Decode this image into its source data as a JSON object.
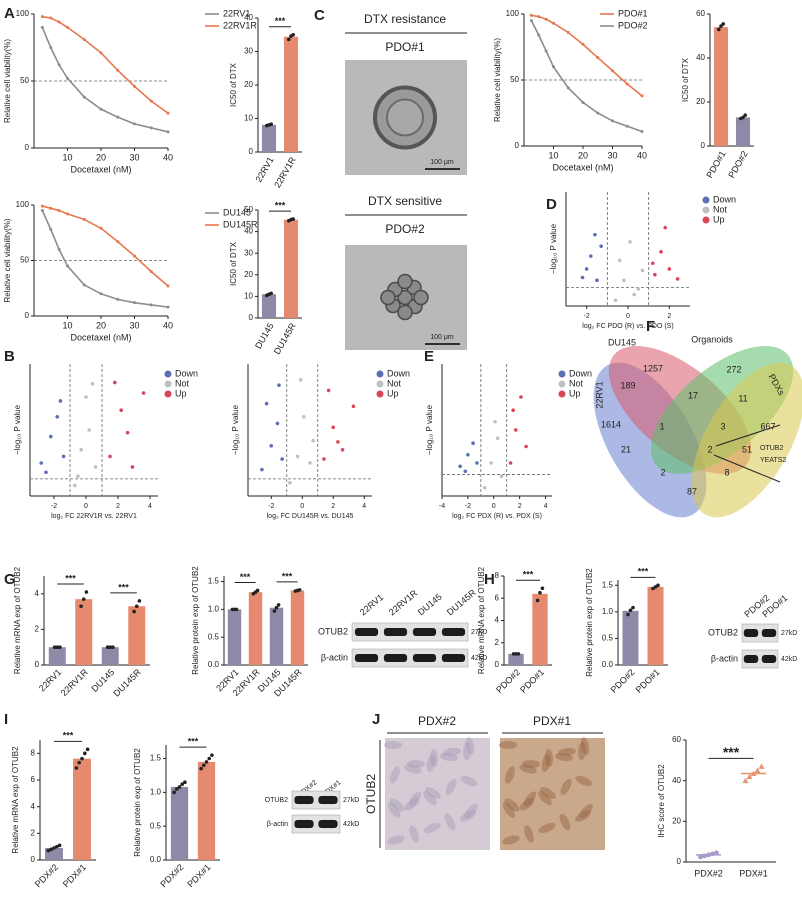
{
  "chart_data": [
    {
      "type": "line",
      "x": [
        2.5,
        5,
        7.5,
        10,
        15,
        20,
        25,
        30,
        35,
        40
      ],
      "xlim": [
        0,
        40
      ],
      "xticks": [
        10,
        20,
        30,
        40
      ],
      "ylim": [
        0,
        100
      ],
      "yticks": [
        0,
        50,
        100
      ],
      "xlabel": "Docetaxel (nM)",
      "ylabel": "Relative cell viability(%)",
      "refline": 50,
      "series": [
        {
          "name": "22RV1",
          "color": "#8c8c8c",
          "values": [
            90,
            75,
            62,
            52,
            38,
            29,
            23,
            18,
            15,
            12
          ]
        },
        {
          "name": "22RV1R",
          "color": "#e8764f",
          "values": [
            98,
            97,
            94,
            90,
            81,
            71,
            58,
            46,
            35,
            26
          ]
        }
      ]
    },
    {
      "type": "bar",
      "categories": [
        "22RV1",
        "22RV1R"
      ],
      "values": [
        8.1,
        34.4
      ],
      "points": [
        [
          7.9,
          8.1,
          8.3
        ],
        [
          33.6,
          34.6,
          35.0
        ]
      ],
      "colors": [
        "#8d89a6",
        "#e58a6e"
      ],
      "ylim": [
        0,
        40
      ],
      "yticks": [
        0,
        10,
        20,
        30,
        40
      ],
      "ylabel": "IC50 of DTX",
      "significance": [
        "***"
      ]
    },
    {
      "type": "line",
      "x": [
        2.5,
        5,
        7.5,
        10,
        15,
        20,
        25,
        30,
        35,
        40
      ],
      "xlim": [
        0,
        40
      ],
      "xticks": [
        10,
        20,
        30,
        40
      ],
      "ylim": [
        0,
        100
      ],
      "yticks": [
        0,
        50,
        100
      ],
      "xlabel": "Docetaxel (nM)",
      "ylabel": "Relative cell viability(%)",
      "refline": 50,
      "series": [
        {
          "name": "DU145",
          "color": "#8c8c8c",
          "values": [
            95,
            78,
            60,
            45,
            28,
            20,
            15,
            12,
            10,
            8
          ]
        },
        {
          "name": "DU145R",
          "color": "#e8764f",
          "values": [
            99,
            97,
            95,
            92,
            87,
            79,
            67,
            54,
            40,
            27
          ]
        }
      ]
    },
    {
      "type": "bar",
      "categories": [
        "DU145",
        "DU145R"
      ],
      "values": [
        11,
        45.5
      ],
      "points": [
        [
          10.5,
          11,
          11.4
        ],
        [
          45,
          45.6,
          45.8
        ]
      ],
      "colors": [
        "#8d89a6",
        "#e58a6e"
      ],
      "ylim": [
        0,
        50
      ],
      "yticks": [
        0,
        10,
        20,
        30,
        40,
        50
      ],
      "ylabel": "IC50 of DTX",
      "significance": [
        "***"
      ]
    },
    {
      "type": "line",
      "x": [
        2.5,
        5,
        7.5,
        10,
        15,
        20,
        25,
        30,
        35,
        40
      ],
      "xlim": [
        0,
        40
      ],
      "xticks": [
        10,
        20,
        30,
        40
      ],
      "ylim": [
        0,
        100
      ],
      "yticks": [
        0,
        50,
        100
      ],
      "xlabel": "Docetaxel (nM)",
      "ylabel": "Relative cell viability(%)",
      "refline": 50,
      "series": [
        {
          "name": "PDO#1",
          "color": "#e8764f",
          "values": [
            99,
            98,
            96,
            93,
            86,
            77,
            67,
            57,
            47,
            38
          ]
        },
        {
          "name": "PDO#2",
          "color": "#8c8c8c",
          "values": [
            95,
            84,
            72,
            60,
            44,
            33,
            25,
            19,
            15,
            11
          ]
        }
      ]
    },
    {
      "type": "bar",
      "categories": [
        "PDO#1",
        "PDO#2"
      ],
      "values": [
        54,
        13
      ],
      "points": [
        [
          53,
          54.5,
          55.5
        ],
        [
          12.5,
          13,
          14
        ]
      ],
      "colors": [
        "#e58a6e",
        "#8d89a6"
      ],
      "ylim": [
        0,
        60
      ],
      "yticks": [
        0,
        20,
        40,
        60
      ],
      "ylabel": "IC50 of DTX"
    },
    {
      "type": "scatter",
      "xlim": [
        -3,
        3
      ],
      "xticks": [
        -2,
        0,
        2
      ],
      "ylim": [
        0,
        8
      ],
      "vlines": [
        -1,
        1
      ],
      "hline": 1.3,
      "xlabel": "log₂ FC PDO (R) vs. PDO (S)",
      "ylabel": "−log₁₀ P value",
      "series": [
        {
          "name": "Down",
          "color": "#5a6fb5",
          "x": [
            -2.2,
            -1.8,
            -1.5,
            -1.3,
            -2.0,
            -1.6
          ],
          "values": [
            2.0,
            3.5,
            1.8,
            4.2,
            2.6,
            5.0
          ]
        },
        {
          "name": "Not",
          "color": "#c0c0c0",
          "x": [
            -0.6,
            -0.2,
            0.3,
            0.7,
            -0.4,
            0.1,
            0.5
          ],
          "values": [
            0.4,
            1.8,
            0.8,
            2.5,
            3.2,
            4.5,
            1.2
          ]
        },
        {
          "name": "Up",
          "color": "#d9465a",
          "x": [
            1.3,
            1.6,
            2.0,
            2.4,
            1.8,
            1.2
          ],
          "values": [
            2.2,
            3.8,
            2.6,
            1.9,
            5.5,
            3.0
          ]
        }
      ]
    },
    {
      "type": "scatter",
      "xlim": [
        -3.5,
        4.5
      ],
      "xticks": [
        -2,
        0,
        2,
        4
      ],
      "ylim": [
        0,
        10
      ],
      "vlines": [
        -1,
        1
      ],
      "hline": 1.3,
      "xlabel": "log₂ FC 22RV1R vs. 22RV1",
      "ylabel": "−log₁₀ P value",
      "series": [
        {
          "name": "Down",
          "color": "#5a6fb5",
          "x": [
            -2.8,
            -2.2,
            -1.8,
            -1.4,
            -2.5,
            -1.6
          ],
          "values": [
            2.5,
            4.5,
            6.0,
            3.0,
            1.8,
            7.2
          ]
        },
        {
          "name": "Not",
          "color": "#c0c0c0",
          "x": [
            -0.7,
            -0.3,
            0.2,
            0.6,
            0.0,
            -0.5,
            0.4
          ],
          "values": [
            0.8,
            3.5,
            5.0,
            2.2,
            7.5,
            1.5,
            8.5
          ]
        },
        {
          "name": "Up",
          "color": "#d9465a",
          "x": [
            1.5,
            2.2,
            2.9,
            3.6,
            1.8,
            2.6
          ],
          "values": [
            3.0,
            6.5,
            2.2,
            7.8,
            8.6,
            4.8
          ]
        }
      ]
    },
    {
      "type": "scatter",
      "xlim": [
        -3.5,
        4.5
      ],
      "xticks": [
        -2,
        0,
        2,
        4
      ],
      "ylim": [
        0,
        10
      ],
      "vlines": [
        -1,
        1
      ],
      "hline": 1.3,
      "xlabel": "log₂ FC DU145R vs. DU145",
      "ylabel": "−log₁₀ P value",
      "series": [
        {
          "name": "Down",
          "color": "#5a6fb5",
          "x": [
            -2.6,
            -2.0,
            -1.6,
            -1.3,
            -2.3,
            -1.5
          ],
          "values": [
            2.0,
            3.8,
            5.5,
            2.8,
            7.0,
            8.4
          ]
        },
        {
          "name": "Not",
          "color": "#c0c0c0",
          "x": [
            -0.8,
            -0.3,
            0.1,
            0.5,
            -0.1,
            0.7
          ],
          "values": [
            1.0,
            3.0,
            6.0,
            2.5,
            8.8,
            4.2
          ]
        },
        {
          "name": "Up",
          "color": "#d9465a",
          "x": [
            1.4,
            2.0,
            2.6,
            3.3,
            1.7,
            2.3
          ],
          "values": [
            2.8,
            5.2,
            3.5,
            6.8,
            8.0,
            4.1
          ]
        }
      ]
    },
    {
      "type": "scatter",
      "xlim": [
        -4,
        4.5
      ],
      "xticks": [
        -4,
        -2,
        0,
        2,
        4
      ],
      "ylim": [
        0,
        8
      ],
      "vlines": [
        -1,
        1
      ],
      "hline": 1.3,
      "xlabel": "log₂ FC PDX (R) vs. PDX (S)",
      "ylabel": "−log₁₀ P value",
      "series": [
        {
          "name": "Down",
          "color": "#5a6fb5",
          "x": [
            -2.6,
            -2.0,
            -1.6,
            -1.3,
            -2.2
          ],
          "values": [
            1.8,
            2.5,
            3.2,
            2.0,
            1.5
          ]
        },
        {
          "name": "Not",
          "color": "#c0c0c0",
          "x": [
            -0.7,
            -0.2,
            0.3,
            0.6,
            0.1
          ],
          "values": [
            0.5,
            2.0,
            3.5,
            1.2,
            4.5
          ]
        },
        {
          "name": "Up",
          "color": "#d9465a",
          "x": [
            1.3,
            1.7,
            2.1,
            1.5,
            2.5
          ],
          "values": [
            2.0,
            4.0,
            6.0,
            5.2,
            3.0
          ]
        }
      ]
    },
    {
      "type": "bar",
      "categories": [
        "22RV1",
        "22RV1R",
        "DU145",
        "DU145R"
      ],
      "values": [
        1,
        3.7,
        1,
        3.3
      ],
      "points": [
        [
          1,
          1,
          1
        ],
        [
          3.3,
          3.7,
          4.1
        ],
        [
          1,
          1,
          1
        ],
        [
          3.0,
          3.3,
          3.6
        ]
      ],
      "colors": [
        "#8d89a6",
        "#e58a6e",
        "#8d89a6",
        "#e58a6e"
      ],
      "ylim": [
        0,
        5
      ],
      "yticks": [
        0,
        2,
        4
      ],
      "ylabel": "Relative mRNA exp of OTUB2",
      "significance": [
        "***",
        "***"
      ]
    },
    {
      "type": "bar",
      "categories": [
        "22RV1",
        "22RV1R",
        "DU145",
        "DU145R"
      ],
      "values": [
        1.0,
        1.31,
        1.03,
        1.34
      ],
      "points": [
        [
          1.0,
          1.0,
          1.0
        ],
        [
          1.28,
          1.31,
          1.34
        ],
        [
          0.97,
          1.03,
          1.08
        ],
        [
          1.33,
          1.34,
          1.35
        ]
      ],
      "colors": [
        "#8d89a6",
        "#e58a6e",
        "#8d89a6",
        "#e58a6e"
      ],
      "ylim": [
        0,
        1.6
      ],
      "yticks": [
        {
          "value": 0,
          "label": "0.0"
        },
        {
          "value": 0.5,
          "label": "0.5"
        },
        {
          "value": 1,
          "label": "1.0"
        },
        {
          "value": 1.5,
          "label": "1.5"
        }
      ],
      "ylabel": "Relative protein exp of OTUB2",
      "significance": [
        "***",
        "***"
      ]
    },
    {
      "type": "bar",
      "categories": [
        "PDO#2",
        "PDO#1"
      ],
      "values": [
        1,
        6.4
      ],
      "points": [
        [
          1,
          1,
          1
        ],
        [
          5.8,
          6.5,
          6.9
        ]
      ],
      "colors": [
        "#8d89a6",
        "#e58a6e"
      ],
      "ylim": [
        0,
        8
      ],
      "yticks": [
        0,
        2,
        4,
        6,
        8
      ],
      "ylabel": "Relative mRNA exp of OTUB2",
      "significance": [
        "***"
      ]
    },
    {
      "type": "bar",
      "categories": [
        "PDO#2",
        "PDO#1"
      ],
      "values": [
        1.02,
        1.47
      ],
      "points": [
        [
          0.95,
          1.03,
          1.08
        ],
        [
          1.44,
          1.47,
          1.5
        ]
      ],
      "colors": [
        "#8d89a6",
        "#e58a6e"
      ],
      "ylim": [
        0,
        1.6
      ],
      "yticks": [
        {
          "value": 0,
          "label": "0.0"
        },
        {
          "value": 0.5,
          "label": "0.5"
        },
        {
          "value": 1,
          "label": "1.0"
        },
        {
          "value": 1.5,
          "label": "1.5"
        }
      ],
      "ylabel": "Relative protein exp of OTUB2",
      "significance": [
        "***"
      ]
    },
    {
      "type": "bar",
      "categories": [
        "PDX#2",
        "PDX#1"
      ],
      "values": [
        0.9,
        7.6
      ],
      "points": [
        [
          0.7,
          0.8,
          0.9,
          1.0,
          1.1
        ],
        [
          6.9,
          7.3,
          7.6,
          8.0,
          8.3
        ]
      ],
      "colors": [
        "#8d89a6",
        "#e58a6e"
      ],
      "ylim": [
        0,
        9
      ],
      "yticks": [
        0,
        2,
        4,
        6,
        8
      ],
      "ylabel": "Relative mRNA exp of OTUB2",
      "significance": [
        "***"
      ]
    },
    {
      "type": "bar",
      "categories": [
        "PDX#2",
        "PDX#1"
      ],
      "values": [
        1.08,
        1.45
      ],
      "points": [
        [
          1.0,
          1.05,
          1.08,
          1.12,
          1.15
        ],
        [
          1.35,
          1.4,
          1.45,
          1.5,
          1.55
        ]
      ],
      "colors": [
        "#8d89a6",
        "#e58a6e"
      ],
      "ylim": [
        0,
        1.7
      ],
      "yticks": [
        {
          "value": 0,
          "label": "0.0"
        },
        {
          "value": 0.5,
          "label": "0.5"
        },
        {
          "value": 1,
          "label": "1.0"
        },
        {
          "value": 1.5,
          "label": "1.5"
        }
      ],
      "ylabel": "Relative protein exp of OTUB2",
      "significance": [
        "***"
      ]
    },
    {
      "type": "dot",
      "categories": [
        "PDX#2",
        "PDX#1"
      ],
      "values": [
        3.5,
        43.5
      ],
      "points": [
        [
          2.5,
          3,
          3.5,
          4,
          4.5
        ],
        [
          40,
          42,
          43.5,
          45,
          47
        ]
      ],
      "colors": [
        "#a99ccc",
        "#e8946a"
      ],
      "ylim": [
        0,
        60
      ],
      "yticks": [
        0,
        20,
        40,
        60
      ],
      "ylabel": "IHC score of OTUB2",
      "significance": [
        "***"
      ]
    }
  ],
  "panels": [
    "A",
    "B",
    "C",
    "D",
    "E",
    "F",
    "G",
    "H",
    "I",
    "J"
  ],
  "micrographs": [
    {
      "title": "DTX resistance",
      "label": "PDO#1",
      "scale": "100 μm"
    },
    {
      "title": "DTX sensitive",
      "label": "PDO#2",
      "scale": "100 μm"
    }
  ],
  "ihc": {
    "columns": [
      "PDX#2",
      "PDX#1"
    ],
    "row": "OTUB2"
  },
  "venn": {
    "sets": [
      "22RV1",
      "DU145",
      "Organoids",
      "PDXs"
    ],
    "counts": [
      1257,
      272,
      189,
      17,
      11,
      1614,
      667,
      1,
      3,
      21,
      2,
      51,
      2,
      8,
      87
    ],
    "genes": [
      "OTUB2",
      "YEATS2"
    ]
  },
  "blots": [
    {
      "lanes": [
        "22RV1",
        "22RV1R",
        "DU145",
        "DU145R"
      ],
      "rows": [
        {
          "protein": "OTUB2",
          "size": "27kD"
        },
        {
          "protein": "β-actin",
          "size": "42kD"
        }
      ]
    },
    {
      "lanes": [
        "PDO#2",
        "PDO#1"
      ],
      "rows": [
        {
          "protein": "OTUB2",
          "size": "27kD"
        },
        {
          "protein": "β-actin",
          "size": "42kD"
        }
      ]
    },
    {
      "lanes": [
        "PDX#2",
        "PDX#1"
      ],
      "rows": [
        {
          "protein": "OTUB2",
          "size": "27kD"
        },
        {
          "protein": "β-actin",
          "size": "42kD"
        }
      ]
    }
  ]
}
